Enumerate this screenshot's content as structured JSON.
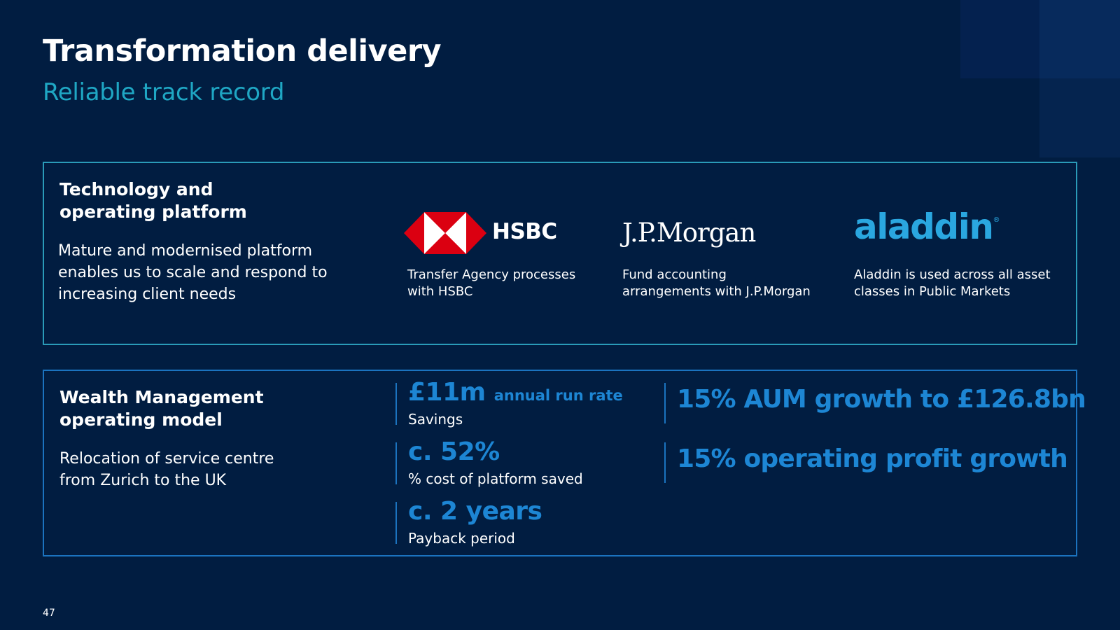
{
  "header": {
    "title": "Transformation delivery",
    "subtitle": "Reliable track record"
  },
  "tech": {
    "heading_line1": "Technology and",
    "heading_line2": "operating platform",
    "body_line1": "Mature and modernised platform",
    "body_line2": "enables us to scale and respond to",
    "body_line3": "increasing client needs",
    "partners": [
      {
        "logo": "HSBC",
        "caption_line1": "Transfer Agency processes",
        "caption_line2": "with HSBC",
        "icon": "hsbc-hexagon-icon",
        "color": "#db0011"
      },
      {
        "logo": "J.P.Morgan",
        "caption_line1": "Fund accounting",
        "caption_line2": "arrangements with J.P.Morgan"
      },
      {
        "logo": "aladdin",
        "logo_mark": "®",
        "caption_line1": "Aladdin is used across all asset",
        "caption_line2": "classes in Public Markets",
        "color": "#2aa7e0"
      }
    ]
  },
  "wealth": {
    "heading_line1": "Wealth Management",
    "heading_line2": "operating model",
    "body_line1": "Relocation of service centre",
    "body_line2": "from Zurich to the UK",
    "metrics": [
      {
        "value": "£11m",
        "suffix": "annual run rate",
        "caption": "Savings"
      },
      {
        "value": "c. 52%",
        "caption": "% cost of platform saved"
      },
      {
        "value": "c. 2 years",
        "caption": "Payback period"
      }
    ],
    "growth": [
      "15% AUM growth to £126.8bn",
      "15% operating profit growth"
    ]
  },
  "footer": {
    "page_number": "47"
  },
  "colors": {
    "background": "#011d41",
    "accent_teal": "#1fa7c4",
    "accent_blue": "#1d86d4"
  }
}
